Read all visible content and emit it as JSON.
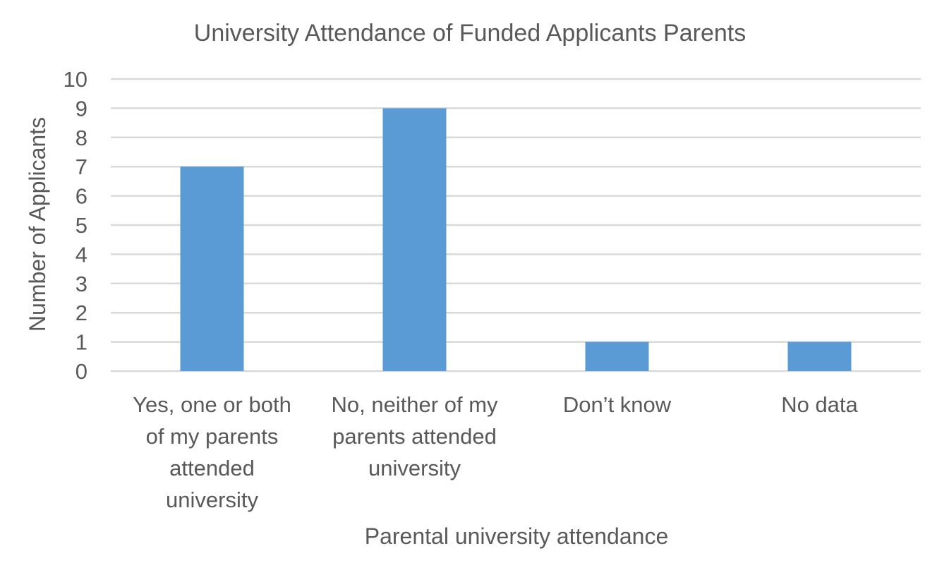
{
  "chart_data": {
    "type": "bar",
    "title": "University Attendance of Funded Applicants Parents",
    "xlabel": "Parental university attendance",
    "ylabel": "Number of Applicants",
    "categories": [
      "Yes, one or both of my parents attended university",
      "No, neither of my parents attended university",
      "Don’t know",
      "No data"
    ],
    "category_lines": [
      [
        "Yes, one or both",
        "of my parents",
        "attended",
        "university"
      ],
      [
        "No, neither of my",
        "parents attended",
        "university"
      ],
      [
        "Don’t know"
      ],
      [
        "No data"
      ]
    ],
    "values": [
      7,
      9,
      1,
      1
    ],
    "ylim": [
      0,
      10
    ],
    "yticks": [
      "0",
      "1",
      "2",
      "3",
      "4",
      "5",
      "6",
      "7",
      "8",
      "9",
      "10"
    ],
    "grid": true,
    "legend": "none",
    "bar_color": "#5b9bd5"
  }
}
